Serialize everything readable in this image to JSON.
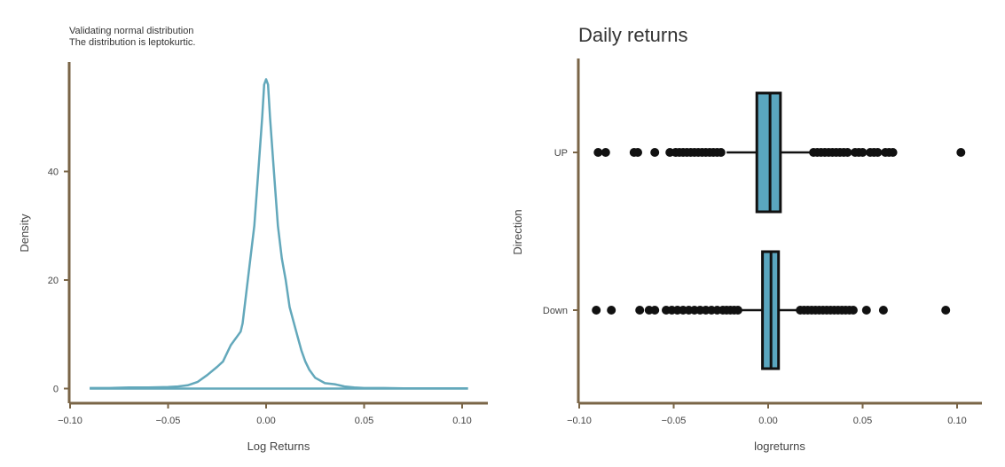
{
  "colors": {
    "axis": "#7a6547",
    "density_line": "#63a8bb",
    "box_fill": "#5aa6bf",
    "box_stroke": "#111111",
    "points": "#111111"
  },
  "chart_data": [
    {
      "type": "line",
      "subtitle_lines": [
        "Validating normal distribution",
        "The distribution is leptokurtic."
      ],
      "xlabel": "Log Returns",
      "ylabel": "Density",
      "xlim": [
        -0.1,
        0.11
      ],
      "ylim": [
        -2.5,
        60
      ],
      "x_ticks": [
        -0.1,
        -0.05,
        0.0,
        0.05,
        0.1
      ],
      "x_tick_labels": [
        "−0.10",
        "−0.05",
        "0.00",
        "0.05",
        "0.10"
      ],
      "y_ticks": [
        0,
        20,
        40
      ],
      "y_tick_labels": [
        "0",
        "20",
        "40"
      ],
      "grid": false,
      "series": [
        {
          "x": [
            -0.09,
            -0.08,
            -0.07,
            -0.06,
            -0.05,
            -0.045,
            -0.04,
            -0.035,
            -0.03,
            -0.025,
            -0.022,
            -0.02,
            -0.018,
            -0.015,
            -0.013,
            -0.012,
            -0.01,
            -0.008,
            -0.006,
            -0.004,
            -0.002,
            -0.001,
            0.0,
            0.001,
            0.002,
            0.004,
            0.006,
            0.008,
            0.01,
            0.012,
            0.015,
            0.018,
            0.02,
            0.022,
            0.025,
            0.03,
            0.035,
            0.04,
            0.045,
            0.05,
            0.06,
            0.07,
            0.08,
            0.09,
            0.103
          ],
          "y": [
            0.1,
            0.1,
            0.2,
            0.2,
            0.3,
            0.4,
            0.6,
            1.2,
            2.5,
            4.0,
            5.0,
            6.5,
            8.0,
            9.5,
            10.5,
            12.0,
            18.0,
            24.0,
            30.0,
            40.0,
            50.0,
            56.0,
            57.0,
            56.0,
            50.0,
            40.0,
            30.0,
            24.0,
            20.0,
            15.0,
            11.0,
            7.0,
            5.0,
            3.5,
            2.0,
            1.0,
            0.8,
            0.4,
            0.2,
            0.1,
            0.1,
            0.05,
            0.05,
            0.05,
            0.05
          ]
        },
        {
          "x": [
            -0.09,
            0.103
          ],
          "y": [
            0,
            0
          ]
        }
      ]
    },
    {
      "type": "box",
      "title": "Daily returns",
      "xlabel": "logreturns",
      "ylabel": "Direction",
      "xlim": [
        -0.1,
        0.11
      ],
      "x_ticks": [
        -0.1,
        -0.05,
        0.0,
        0.05,
        0.1
      ],
      "x_tick_labels": [
        "−0.10",
        "−0.05",
        "0.00",
        "0.05",
        "0.10"
      ],
      "categories": [
        "UP",
        "Down"
      ],
      "grid": false,
      "boxes": [
        {
          "category": "UP",
          "q1": -0.006,
          "median": 0.001,
          "q3": 0.0065,
          "whisker_low": -0.022,
          "whisker_high": 0.024,
          "outliers": [
            -0.09,
            -0.086,
            -0.071,
            -0.069,
            -0.06,
            -0.052,
            -0.049,
            -0.047,
            -0.045,
            -0.043,
            -0.041,
            -0.039,
            -0.037,
            -0.035,
            -0.033,
            -0.031,
            -0.029,
            -0.027,
            -0.025,
            0.024,
            0.026,
            0.028,
            0.03,
            0.032,
            0.034,
            0.036,
            0.038,
            0.04,
            0.042,
            0.046,
            0.048,
            0.05,
            0.054,
            0.056,
            0.058,
            0.062,
            0.064,
            0.066,
            0.102
          ]
        },
        {
          "category": "Down",
          "q1": -0.003,
          "median": 0.0015,
          "q3": 0.0055,
          "whisker_low": -0.014,
          "whisker_high": 0.017,
          "outliers": [
            -0.091,
            -0.083,
            -0.068,
            -0.063,
            -0.06,
            -0.054,
            -0.051,
            -0.048,
            -0.045,
            -0.042,
            -0.039,
            -0.036,
            -0.033,
            -0.03,
            -0.027,
            -0.024,
            -0.022,
            -0.02,
            -0.018,
            -0.016,
            0.017,
            0.019,
            0.021,
            0.023,
            0.025,
            0.027,
            0.029,
            0.031,
            0.033,
            0.035,
            0.037,
            0.039,
            0.041,
            0.043,
            0.045,
            0.052,
            0.061,
            0.094
          ]
        }
      ]
    }
  ]
}
